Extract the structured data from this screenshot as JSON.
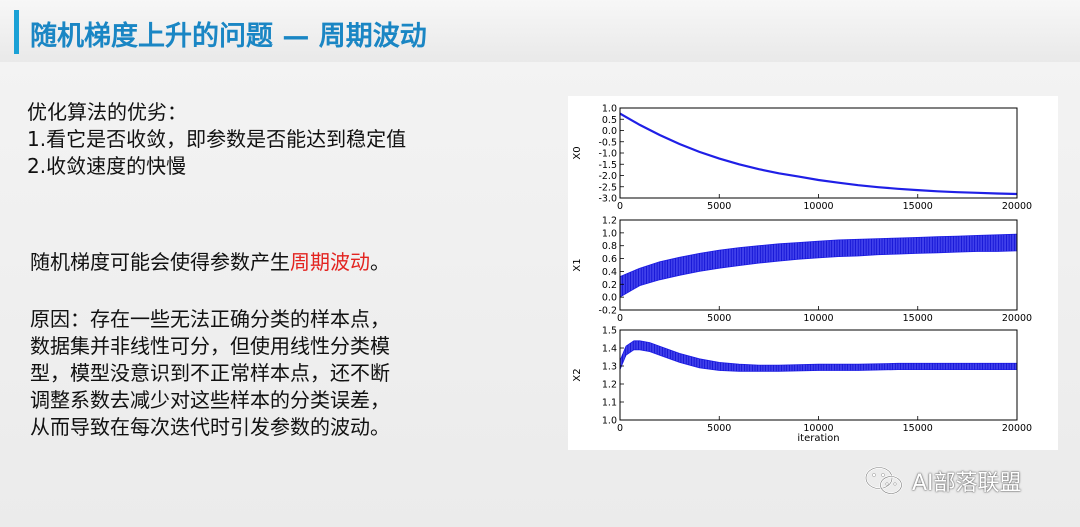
{
  "slide": {
    "title": "随机梯度上升的问题 — 周期波动",
    "pros_title": "优化算法的优劣：",
    "pros_items": [
      "1.看它是否收敛，即参数是否能达到稳定值",
      "2.收敛速度的快慢"
    ],
    "para1_prefix": "随机梯度可能会使得参数产生",
    "para1_highlight": "周期波动",
    "para1_suffix": "。",
    "reason_lines": [
      "原因：存在一些无法正确分类的样本点，",
      "数据集并非线性可分，但使用线性分类模",
      "型，模型没意识到不正常样本点，还不断",
      "调整系数去减少对这些样本的分类误差，",
      "从而导致在每次迭代时引发参数的波动。"
    ],
    "highlight_color": "#e3231f",
    "title_color": "#1a86c4",
    "accent_color": "#1aa1d6"
  },
  "watermark": {
    "text": "AI部落联盟",
    "icon": "wechat-icon"
  },
  "chart_data": [
    {
      "type": "line",
      "ylabel": "X0",
      "xlim": [
        0,
        20000
      ],
      "ylim": [
        -3.0,
        1.0
      ],
      "yticks": [
        "1.0",
        "0.5",
        "0.0",
        "-0.5",
        "-1.0",
        "-1.5",
        "-2.0",
        "-2.5",
        "-3.0"
      ],
      "xticks": [
        "0",
        "5000",
        "10000",
        "15000",
        "20000"
      ],
      "x": [
        0,
        1000,
        2000,
        3000,
        4000,
        5000,
        6000,
        7000,
        8000,
        9000,
        10000,
        11000,
        12000,
        13000,
        14000,
        15000,
        16000,
        17000,
        18000,
        19000,
        20000
      ],
      "y": [
        0.75,
        0.25,
        -0.2,
        -0.6,
        -0.95,
        -1.25,
        -1.5,
        -1.72,
        -1.9,
        -2.05,
        -2.2,
        -2.32,
        -2.43,
        -2.52,
        -2.59,
        -2.65,
        -2.7,
        -2.74,
        -2.77,
        -2.8,
        -2.82
      ],
      "color": "#1f1fe6"
    },
    {
      "type": "line",
      "ylabel": "X1",
      "xlim": [
        0,
        20000
      ],
      "ylim": [
        -0.2,
        1.2
      ],
      "yticks": [
        "1.2",
        "1.0",
        "0.8",
        "0.6",
        "0.4",
        "0.2",
        "0.0",
        "-0.2"
      ],
      "xticks": [
        "0",
        "5000",
        "10000",
        "15000",
        "20000"
      ],
      "x": [
        0,
        1000,
        2000,
        3000,
        4000,
        5000,
        6000,
        7000,
        8000,
        9000,
        10000,
        11000,
        12000,
        13000,
        14000,
        15000,
        16000,
        17000,
        18000,
        19000,
        20000
      ],
      "upper": [
        0.32,
        0.45,
        0.55,
        0.62,
        0.68,
        0.73,
        0.77,
        0.8,
        0.83,
        0.85,
        0.87,
        0.89,
        0.9,
        0.91,
        0.92,
        0.93,
        0.94,
        0.95,
        0.96,
        0.97,
        0.98
      ],
      "lower": [
        0.0,
        0.18,
        0.27,
        0.34,
        0.4,
        0.45,
        0.49,
        0.53,
        0.56,
        0.59,
        0.61,
        0.63,
        0.64,
        0.66,
        0.67,
        0.68,
        0.69,
        0.7,
        0.71,
        0.71,
        0.72
      ],
      "color": "#1f1fe6"
    },
    {
      "type": "line",
      "ylabel": "X2",
      "xlabel": "iteration",
      "xlim": [
        0,
        20000
      ],
      "ylim": [
        1.0,
        1.5
      ],
      "yticks": [
        "1.5",
        "1.4",
        "1.3",
        "1.2",
        "1.1",
        "1.0"
      ],
      "xticks": [
        "0",
        "5000",
        "10000",
        "15000",
        "20000"
      ],
      "x": [
        0,
        300,
        700,
        1000,
        1500,
        2000,
        3000,
        4000,
        5000,
        6000,
        7000,
        8000,
        10000,
        12000,
        14000,
        16000,
        18000,
        20000
      ],
      "upper": [
        1.33,
        1.41,
        1.44,
        1.44,
        1.43,
        1.41,
        1.37,
        1.34,
        1.32,
        1.31,
        1.305,
        1.305,
        1.31,
        1.31,
        1.315,
        1.315,
        1.315,
        1.315
      ],
      "lower": [
        1.28,
        1.36,
        1.39,
        1.39,
        1.38,
        1.36,
        1.32,
        1.29,
        1.275,
        1.27,
        1.27,
        1.27,
        1.275,
        1.275,
        1.28,
        1.28,
        1.28,
        1.28
      ],
      "color": "#1f1fe6"
    }
  ]
}
